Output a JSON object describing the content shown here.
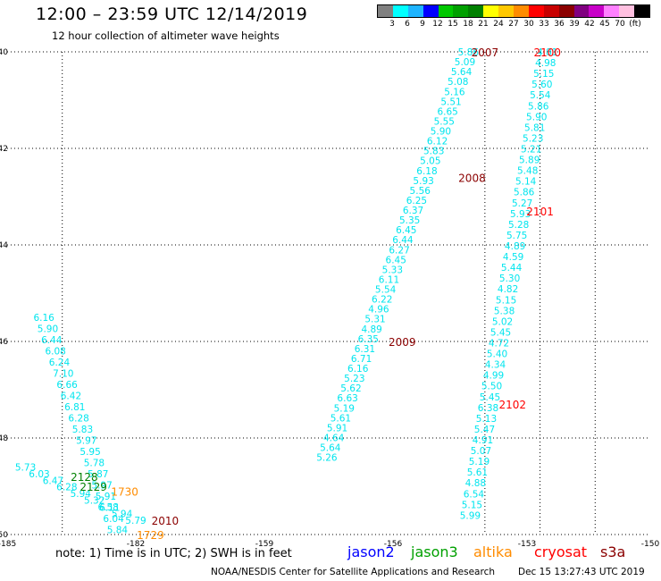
{
  "title": "12:00 – 23:59 UTC 12/14/2019",
  "subtitle": "12 hour collection of altimeter wave heights",
  "colorbar": {
    "colors": [
      "#808080",
      "#00ffff",
      "#1eb4ff",
      "#0000ff",
      "#00c800",
      "#00a000",
      "#008000",
      "#ffff00",
      "#ffc800",
      "#ff8c00",
      "#ff0000",
      "#c80000",
      "#8b0000",
      "#800080",
      "#c800c8",
      "#ff80ff",
      "#ffc0e0",
      "#000000"
    ],
    "labels": [
      "3",
      "6",
      "9",
      "12",
      "15",
      "18",
      "21",
      "24",
      "27",
      "30",
      "33",
      "36",
      "39",
      "42",
      "45",
      "70",
      "(ft)"
    ]
  },
  "chart_data": {
    "type": "scatter",
    "x_range": [
      -185,
      -150
    ],
    "y_range": [
      -50,
      -40
    ],
    "x_ticks": [
      "-185",
      "-182",
      "-159",
      "-156",
      "-153",
      "-150"
    ],
    "y_ticks": [
      "-40",
      "-42",
      "-44",
      "-46",
      "-48",
      "-50"
    ],
    "swh_color": "#00e5ee",
    "tracks": [
      {
        "name": "A",
        "x_start": -159.9,
        "y_start": -40.0,
        "x_end": -167.6,
        "y_end": -48.4,
        "values": [
          "5.86",
          "5.09",
          "5.64",
          "5.08",
          "5.16",
          "5.51",
          "6.65",
          "5.55",
          "5.90",
          "6.12",
          "5.83",
          "5.05",
          "6.18",
          "5.93",
          "5.56",
          "6.25",
          "6.37",
          "5.35",
          "6.45",
          "6.44",
          "6.27",
          "6.45",
          "5.33",
          "6.11",
          "5.54",
          "6.22",
          "4.96",
          "5.31",
          "4.89",
          "6.35",
          "6.31",
          "6.71",
          "6.16",
          "5.23",
          "5.62",
          "6.63",
          "5.19",
          "5.61",
          "5.91",
          "4.64",
          "5.64",
          "5.26"
        ]
      },
      {
        "name": "B",
        "x_start": -155.6,
        "y_start": -40.0,
        "x_end": -159.8,
        "y_end": -49.6,
        "values": [
          "4.81",
          "4.98",
          "5.15",
          "5.60",
          "5.54",
          "5.86",
          "5.90",
          "5.81",
          "5.23",
          "5.21",
          "5.89",
          "5.48",
          "5.14",
          "5.86",
          "5.27",
          "5.93",
          "5.28",
          "5.75",
          "4.89",
          "4.59",
          "5.44",
          "5.30",
          "4.82",
          "5.15",
          "5.38",
          "5.02",
          "5.45",
          "4.72",
          "5.40",
          "4.34",
          "4.99",
          "5.50",
          "5.45",
          "6.38",
          "5.13",
          "5.47",
          "4.91",
          "5.07",
          "5.19",
          "5.61",
          "4.88",
          "6.54",
          "5.15",
          "5.99"
        ]
      },
      {
        "name": "C",
        "x_start": -183.0,
        "y_start": -45.5,
        "x_end": -179.0,
        "y_end": -49.9,
        "values": [
          "6.16",
          "5.90",
          "6.44",
          "6.08",
          "6.24",
          "7.10",
          "6.66",
          "6.42",
          "6.81",
          "6.28",
          "5.83",
          "5.97",
          "5.95",
          "5.78",
          "5.87",
          "5.97",
          "5.91",
          "6.11",
          "6.04",
          "5.84"
        ]
      },
      {
        "name": "D",
        "x_start": -184.0,
        "y_start": -48.6,
        "x_end": -178.0,
        "y_end": -49.7,
        "values": [
          "5.73",
          "6.03",
          "6.47",
          "6.28",
          "5.94",
          "5.32",
          "6.58",
          "5.94",
          "5.79"
        ]
      }
    ],
    "time_labels": [
      {
        "text": "2007",
        "x": -159.0,
        "y": -40.0,
        "color": "#8b0000"
      },
      {
        "text": "2100",
        "x": -155.6,
        "y": -40.0,
        "color": "#ff0000"
      },
      {
        "text": "2008",
        "x": -159.7,
        "y": -42.6,
        "color": "#8b0000"
      },
      {
        "text": "2101",
        "x": -156.0,
        "y": -43.3,
        "color": "#ff0000"
      },
      {
        "text": "2009",
        "x": -163.5,
        "y": -46.0,
        "color": "#8b0000"
      },
      {
        "text": "2102",
        "x": -157.5,
        "y": -47.3,
        "color": "#ff0000"
      },
      {
        "text": "2128",
        "x": -180.8,
        "y": -48.8,
        "color": "#008000"
      },
      {
        "text": "2129",
        "x": -180.3,
        "y": -49.0,
        "color": "#008000"
      },
      {
        "text": "1730",
        "x": -178.6,
        "y": -49.1,
        "color": "#ff8c00"
      },
      {
        "text": "2010",
        "x": -176.4,
        "y": -49.7,
        "color": "#8b0000"
      },
      {
        "text": "1729",
        "x": -177.2,
        "y": -50.0,
        "color": "#ff8c00"
      }
    ]
  },
  "note": "note:  1) Time is in UTC;  2) SWH is in feet",
  "missions": [
    {
      "name": "jason2",
      "color": "#0000ff"
    },
    {
      "name": "jason3",
      "color": "#00a000"
    },
    {
      "name": "altika",
      "color": "#ff8c00"
    },
    {
      "name": "cryosat",
      "color": "#ff0000"
    },
    {
      "name": "s3a",
      "color": "#8b0000"
    }
  ],
  "footer": "NOAA/NESDIS Center for Satellite Applications and Research",
  "timestamp": "Dec 15 13:27:43 UTC 2019"
}
